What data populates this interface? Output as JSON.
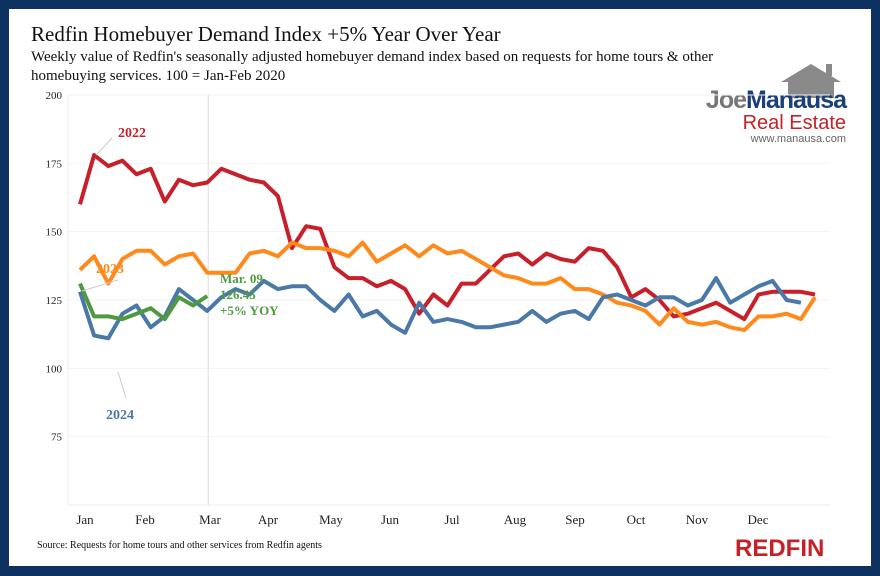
{
  "chart_data": {
    "type": "line",
    "title": "Redfin Homebuyer Demand Index +5% Year Over Year",
    "subtitle": "Weekly value of Redfin's seasonally adjusted homebuyer demand index based on requests for home tours & other homebuying services. 100 = Jan-Feb 2020",
    "x_ticks": [
      "Jan",
      "Feb",
      "Mar",
      "Apr",
      "May",
      "Jun",
      "Jul",
      "Aug",
      "Sep",
      "Oct",
      "Nov",
      "Dec"
    ],
    "y_ticks": [
      75,
      100,
      125,
      150,
      175,
      200
    ],
    "ylim": [
      50,
      200
    ],
    "xlim_weeks": [
      1,
      53
    ],
    "grid": true,
    "series": [
      {
        "name": "2022",
        "color": "#c8202a",
        "values": [
          160,
          178,
          174,
          176,
          171,
          173,
          161,
          169,
          167,
          168,
          173,
          171,
          169,
          168,
          163,
          144,
          152,
          151,
          137,
          133,
          133,
          130,
          132,
          129,
          120,
          127,
          123,
          131,
          131,
          136,
          141,
          142,
          138,
          142,
          140,
          139,
          144,
          143,
          137,
          126,
          129,
          125,
          119,
          120,
          122,
          124,
          121,
          118,
          127,
          128,
          128,
          128,
          127
        ]
      },
      {
        "name": "2023",
        "color": "#ff8a1c",
        "values": [
          136,
          141,
          131,
          140,
          143,
          143,
          138,
          141,
          142,
          135,
          135,
          135,
          142,
          143,
          141,
          146,
          144,
          144,
          143,
          141,
          146,
          139,
          142,
          145,
          141,
          145,
          142,
          143,
          140,
          137,
          134,
          133,
          131,
          131,
          133,
          129,
          129,
          127,
          124,
          123,
          121,
          116,
          122,
          117,
          116,
          117,
          115,
          114,
          119,
          119,
          120,
          118,
          126
        ]
      },
      {
        "name": "2024",
        "color": "#4a79a8",
        "values": [
          128,
          112,
          111,
          120,
          123,
          115,
          119,
          129,
          125,
          121,
          126,
          129,
          127,
          132,
          129,
          130,
          130,
          125,
          121,
          127,
          119,
          121,
          116,
          113,
          124,
          117,
          118,
          117,
          115,
          115,
          116,
          117,
          121,
          117,
          120,
          121,
          118,
          126,
          127,
          125,
          123,
          126,
          126,
          123,
          125,
          133,
          124,
          127,
          130,
          132,
          125,
          124
        ]
      },
      {
        "color": "#4f9a3f",
        "values": [
          131,
          119,
          119,
          118,
          120,
          122,
          118,
          126,
          123,
          126.45
        ]
      }
    ],
    "annotation": {
      "date": "Mar. 09",
      "value": "126.45",
      "change": "+5% YOY"
    },
    "source": "Source: Requests for home tours and other services from Redfin agents"
  },
  "logo": {
    "line1a": "Joe",
    "line1b": "Manausa",
    "line2": "Real Estate",
    "line3": "www.manausa.com"
  },
  "brand": "REDFIN"
}
